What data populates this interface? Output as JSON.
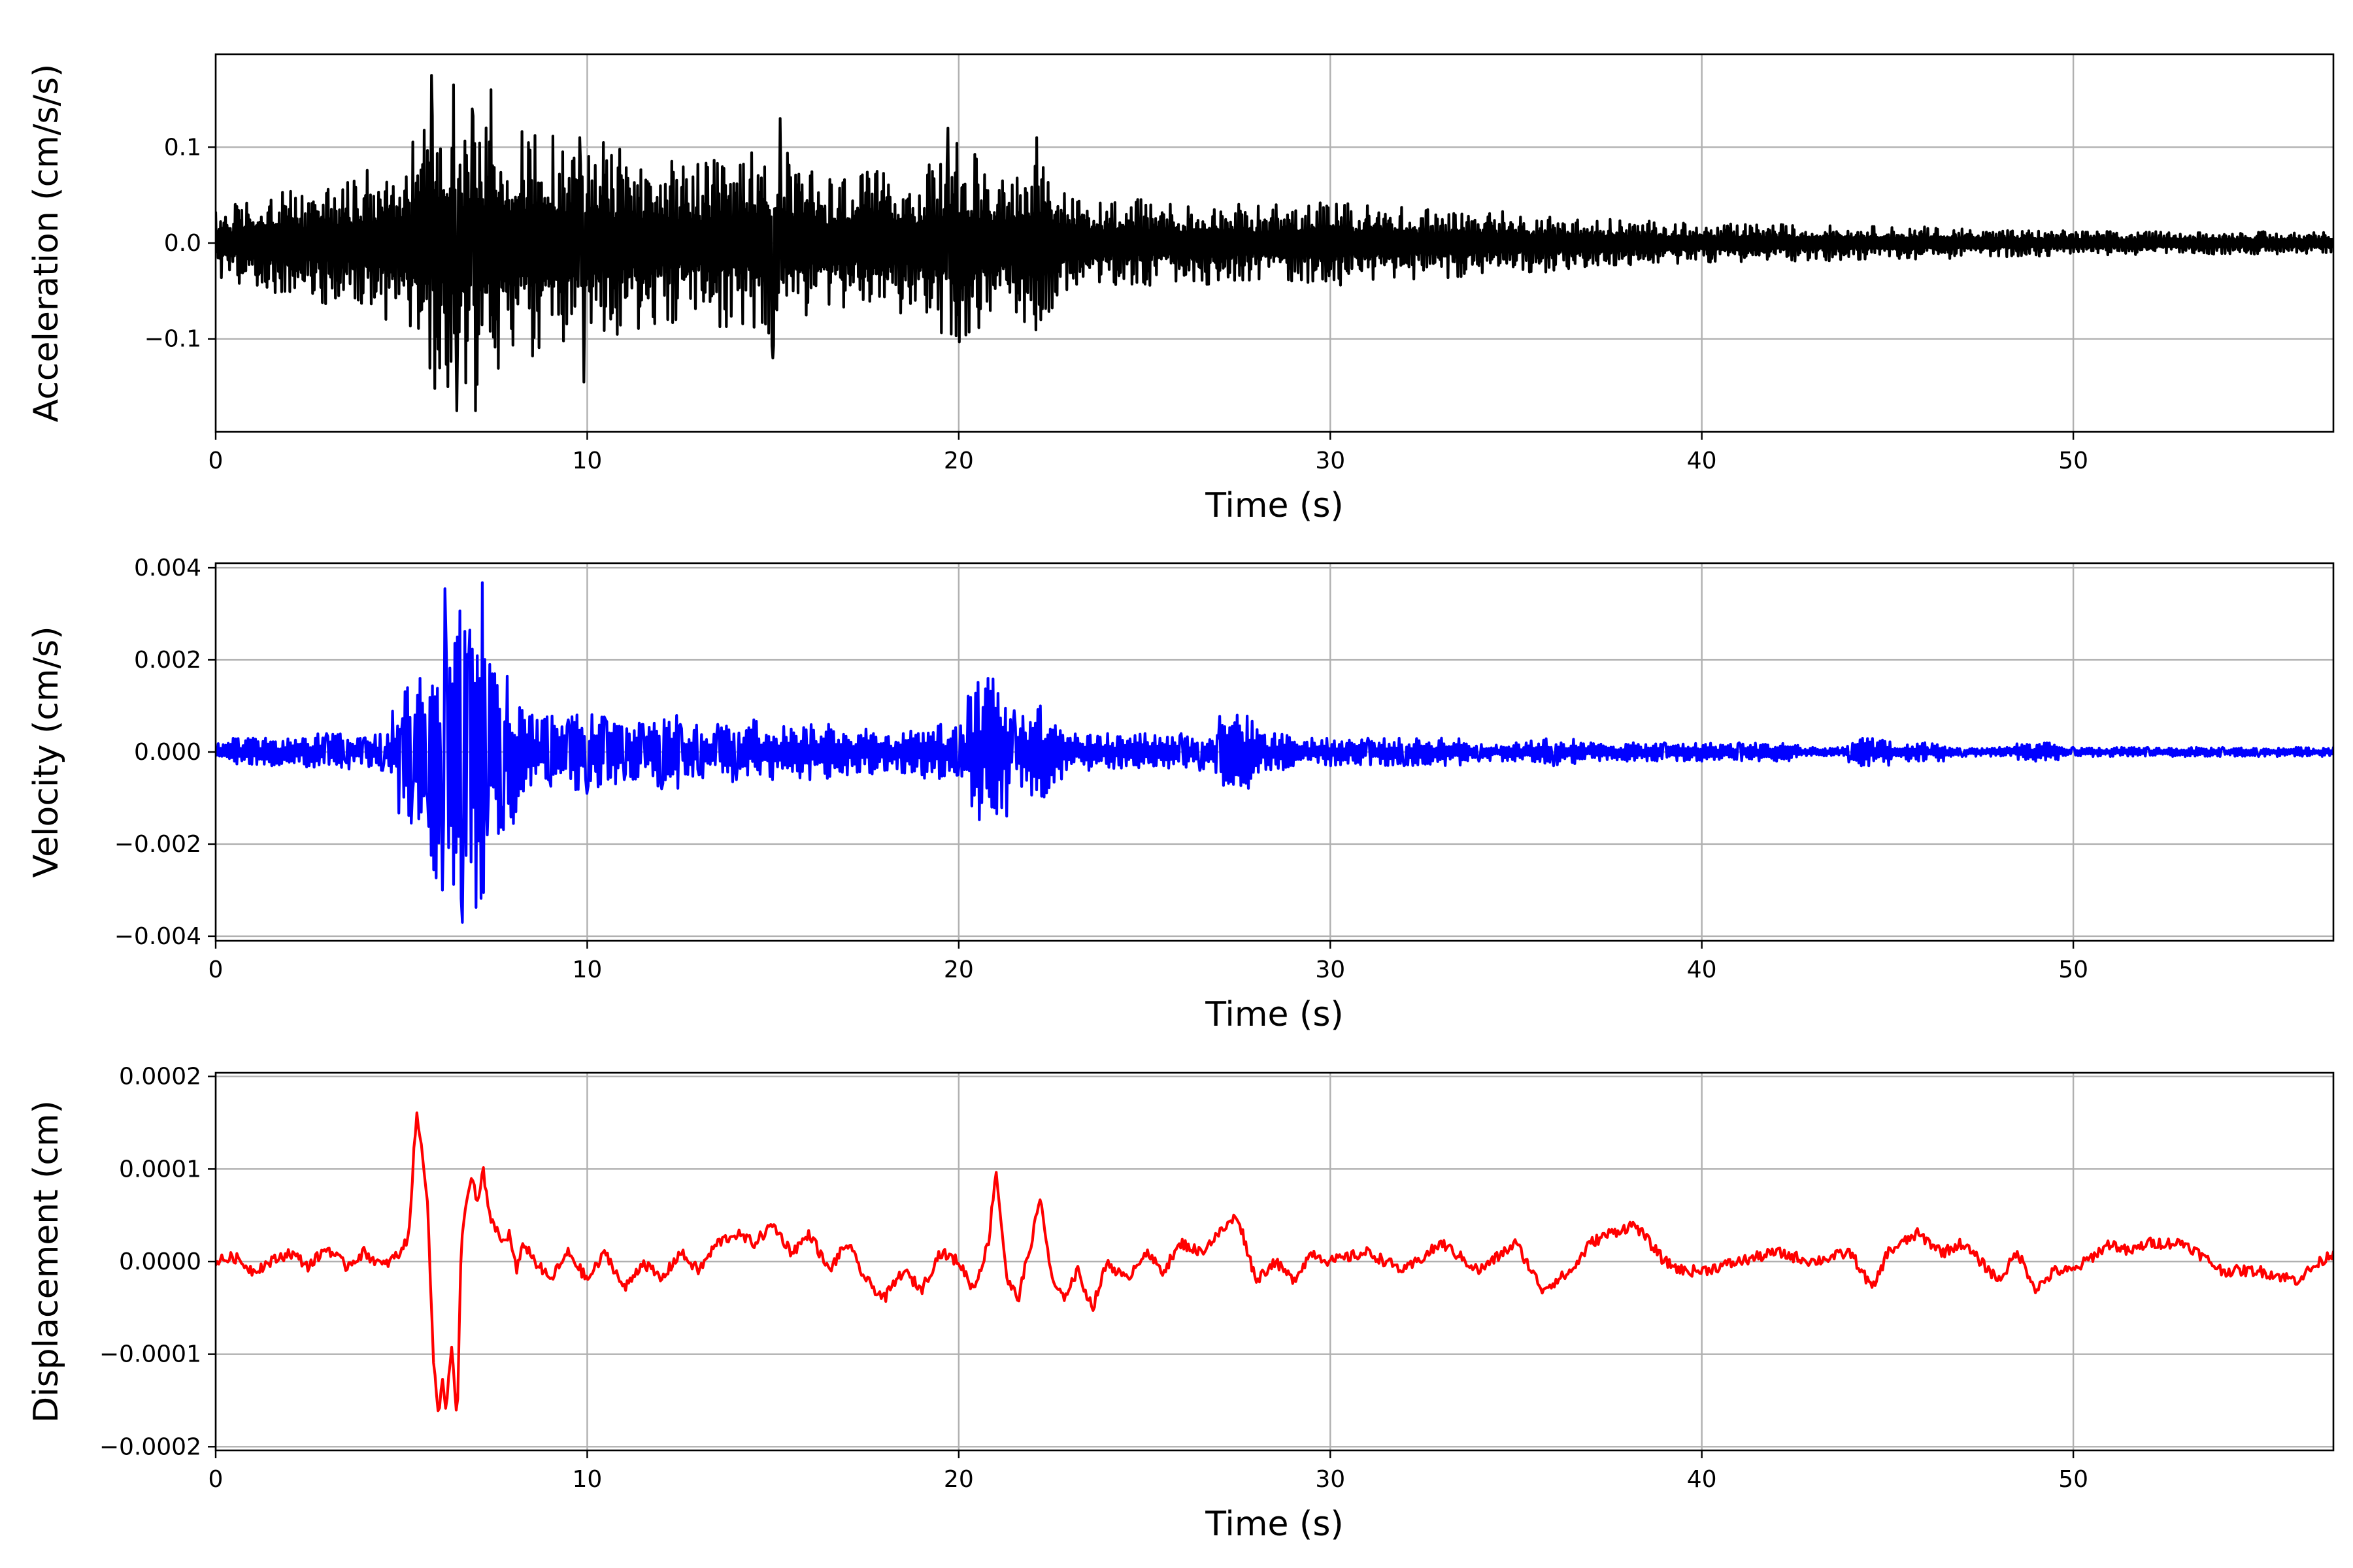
{
  "chart_data": [
    {
      "type": "line",
      "xlabel": "Time (s)",
      "ylabel": "Acceleration (cm/s/s)",
      "xlim": [
        0,
        57
      ],
      "ylim": [
        -0.197,
        0.197
      ],
      "xticks": [
        0,
        10,
        20,
        30,
        40,
        50
      ],
      "xtick_labels": [
        "0",
        "10",
        "20",
        "30",
        "40",
        "50"
      ],
      "yticks": [
        -0.1,
        0.0,
        0.1
      ],
      "ytick_labels": [
        "−0.1",
        "0.0",
        "0.1"
      ],
      "grid": true,
      "series": [
        {
          "color": "#000000",
          "envelope_x": [
            0,
            1,
            2,
            3,
            4,
            5,
            6,
            6.5,
            7,
            8,
            9,
            10,
            11,
            12,
            13,
            14,
            15,
            16,
            17,
            18,
            19,
            20,
            21,
            22,
            23,
            24,
            25,
            26,
            28,
            30,
            32,
            34,
            36,
            38,
            40,
            42,
            44,
            46,
            48,
            50,
            52,
            54,
            57
          ],
          "envelope_y": [
            0.035,
            0.05,
            0.055,
            0.065,
            0.075,
            0.09,
            0.165,
            0.14,
            0.16,
            0.12,
            0.12,
            0.11,
            0.1,
            0.09,
            0.085,
            0.09,
            0.11,
            0.075,
            0.075,
            0.075,
            0.075,
            0.11,
            0.075,
            0.095,
            0.05,
            0.05,
            0.045,
            0.045,
            0.04,
            0.045,
            0.038,
            0.035,
            0.03,
            0.025,
            0.02,
            0.02,
            0.018,
            0.017,
            0.015,
            0.013,
            0.012,
            0.012,
            0.012
          ],
          "peaks_x": [
            5.8,
            6.4,
            6.9,
            7.4,
            9.8,
            15.2,
            19.7,
            22.1,
            6.5,
            7.0,
            9.9,
            15.0,
            19.8,
            22.2
          ],
          "peaks_y": [
            0.175,
            0.165,
            0.14,
            0.16,
            0.11,
            0.13,
            0.12,
            0.11,
            -0.175,
            -0.175,
            -0.145,
            -0.12,
            -0.095,
            -0.08
          ]
        }
      ]
    },
    {
      "type": "line",
      "xlabel": "Time (s)",
      "ylabel": "Velocity (cm/s)",
      "xlim": [
        0,
        57
      ],
      "ylim": [
        -0.0041,
        0.0041
      ],
      "xticks": [
        0,
        10,
        20,
        30,
        40,
        50
      ],
      "xtick_labels": [
        "0",
        "10",
        "20",
        "30",
        "40",
        "50"
      ],
      "yticks": [
        -0.004,
        -0.002,
        0.0,
        0.002,
        0.004
      ],
      "ytick_labels": [
        "−0.004",
        "−0.002",
        "0.000",
        "0.002",
        "0.004"
      ],
      "grid": true,
      "series": [
        {
          "color": "#0000ff",
          "x": [
            0,
            0.5,
            1,
            1.5,
            2,
            2.5,
            3,
            3.5,
            4,
            4.5,
            5,
            5.3,
            5.5,
            5.7,
            5.9,
            6.1,
            6.2,
            6.35,
            6.5,
            6.65,
            6.8,
            6.95,
            7.1,
            7.3,
            7.5,
            7.7,
            7.9,
            8.2,
            8.5,
            9,
            9.5,
            10,
            10.5,
            11,
            11.5,
            12,
            12.5,
            13,
            13.5,
            14,
            14.5,
            15,
            15.5,
            16,
            16.5,
            17,
            17.5,
            18,
            18.5,
            19,
            19.5,
            20,
            20.4,
            20.8,
            21.1,
            21.5,
            21.9,
            22.2,
            22.5,
            23,
            23.5,
            24,
            24.5,
            25,
            25.5,
            26,
            26.5,
            27,
            27.5,
            28,
            28.5,
            29,
            29.5,
            30,
            31,
            32,
            33,
            34,
            35,
            36,
            37,
            38,
            39,
            40,
            41,
            42,
            43,
            44,
            44.5,
            45,
            46,
            47,
            48,
            49,
            50,
            51,
            52,
            53,
            54,
            55,
            56,
            57
          ],
          "y": [
            0.0001,
            -0.0002,
            0.0003,
            -0.0003,
            0.0002,
            -0.0003,
            0.0004,
            -0.0002,
            0.0003,
            -0.0004,
            0.0004,
            -0.0009,
            0.0016,
            -0.001,
            0.0012,
            -0.003,
            0.0024,
            -0.0016,
            0.0025,
            -0.0037,
            0.002,
            -0.0012,
            0.0016,
            -0.0018,
            0.0017,
            -0.0012,
            0.0006,
            -0.0008,
            0.0008,
            -0.0006,
            0.0007,
            -0.0009,
            0.0007,
            -0.0006,
            0.0006,
            -0.0008,
            0.0006,
            -0.0005,
            0.0006,
            -0.0006,
            0.0007,
            -0.0006,
            0.0005,
            -0.0006,
            0.0006,
            -0.0005,
            0.0005,
            -0.0004,
            0.0004,
            -0.0005,
            0.0006,
            -0.0005,
            0.0004,
            0.0016,
            -0.0006,
            0.0009,
            -0.0004,
            0.001,
            -0.0005,
            0.0003,
            -0.0004,
            0.0004,
            -0.0003,
            0.0004,
            -0.0003,
            0.0004,
            -0.0004,
            0.0003,
            0.0008,
            -0.0003,
            0.0004,
            -0.0003,
            0.0003,
            -0.0003,
            0.0003,
            -0.0003,
            0.0003,
            -0.0002,
            0.0002,
            -0.0003,
            0.0002,
            -0.0002,
            0.0002,
            -0.0002,
            0.0002,
            -0.0002,
            0.0001,
            -0.0001,
            -0.0003,
            0.0001,
            0.0002,
            -0.0001,
            0.0001,
            -0.0002,
            0.0001,
            -0.0001,
            0.0001,
            -0.0001,
            0.0001,
            -0.0001,
            0.0001,
            0.0001
          ]
        }
      ]
    },
    {
      "type": "line",
      "xlabel": "Time (s)",
      "ylabel": "Displacement (cm)",
      "xlim": [
        0,
        57
      ],
      "ylim": [
        -0.000204,
        0.000204
      ],
      "xticks": [
        0,
        10,
        20,
        30,
        40,
        50
      ],
      "xtick_labels": [
        "0",
        "10",
        "20",
        "30",
        "40",
        "50"
      ],
      "yticks": [
        -0.0002,
        -0.0001,
        0.0,
        0.0001,
        0.0002
      ],
      "ytick_labels": [
        "−0.0002",
        "−0.0001",
        "0.0000",
        "0.0001",
        "0.0002"
      ],
      "grid": true,
      "series": [
        {
          "color": "#ff0000",
          "x": [
            0,
            0.5,
            1,
            1.5,
            2,
            2.5,
            3,
            3.5,
            4,
            4.5,
            5,
            5.2,
            5.4,
            5.55,
            5.7,
            5.85,
            6.0,
            6.1,
            6.2,
            6.35,
            6.5,
            6.6,
            6.75,
            6.9,
            7.05,
            7.2,
            7.35,
            7.5,
            7.7,
            7.9,
            8.1,
            8.3,
            8.6,
            9,
            9.5,
            10,
            10.5,
            11,
            11.5,
            12,
            12.5,
            13,
            13.5,
            14,
            14.5,
            15,
            15.5,
            16,
            16.5,
            17,
            17.5,
            18,
            18.5,
            19,
            19.5,
            20,
            20.4,
            20.8,
            21.0,
            21.3,
            21.6,
            22.0,
            22.2,
            22.5,
            22.8,
            23.2,
            23.6,
            24,
            24.5,
            25,
            25.5,
            26,
            26.5,
            27,
            27.5,
            28,
            28.5,
            29,
            29.5,
            30,
            31,
            32,
            33,
            34,
            35,
            35.7,
            36.5,
            37,
            37.5,
            38.2,
            39,
            39.5,
            40,
            41,
            42,
            43,
            44,
            44.6,
            45,
            45.8,
            46.5,
            47,
            48,
            48.5,
            49,
            49.5,
            50,
            51,
            51.5,
            52,
            53,
            54,
            55,
            56,
            57
          ],
          "y": [
            0.0,
            5e-06,
            -1e-05,
            0.0,
            1e-05,
            -5e-06,
            1.5e-05,
            -5e-06,
            1e-05,
            -5e-06,
            1e-05,
            3e-05,
            0.00016,
            0.00012,
            7e-05,
            -0.0001,
            -0.00017,
            -0.00012,
            -0.00016,
            -9e-05,
            -0.00018,
            1e-05,
            7e-05,
            9e-05,
            6e-05,
            0.0001,
            5e-05,
            4e-05,
            2e-05,
            3e-05,
            -1e-05,
            2e-05,
            0.0,
            -2e-05,
            1e-05,
            -2e-05,
            1e-05,
            -3e-05,
            0.0,
            -2e-05,
            1e-05,
            -1e-05,
            2e-05,
            3e-05,
            2e-05,
            4e-05,
            1e-05,
            3e-05,
            -1e-05,
            2e-05,
            -2e-05,
            -4e-05,
            -1e-05,
            -3e-05,
            1e-05,
            0.0,
            -3e-05,
            2e-05,
            0.0001,
            -2e-05,
            -4e-05,
            3e-05,
            7e-05,
            -2e-05,
            -4e-05,
            -1e-05,
            -5e-05,
            0.0,
            -2e-05,
            1e-05,
            -1e-05,
            2e-05,
            1e-05,
            3e-05,
            5e-05,
            -2e-05,
            0.0,
            -2e-05,
            1e-05,
            0.0,
            1e-05,
            -1e-05,
            2e-05,
            -1e-05,
            2e-05,
            -3e-05,
            -1e-05,
            2e-05,
            3e-05,
            4e-05,
            0.0,
            -1e-05,
            -1e-05,
            0.0,
            1e-05,
            0.0,
            1e-05,
            -3e-05,
            1e-05,
            3e-05,
            1e-05,
            2e-05,
            -2e-05,
            1e-05,
            -3e-05,
            -1e-05,
            -1e-05,
            2e-05,
            1e-05,
            2e-05,
            2e-05,
            -1e-05,
            -1e-05,
            -2e-05,
            1e-05
          ]
        }
      ]
    }
  ]
}
